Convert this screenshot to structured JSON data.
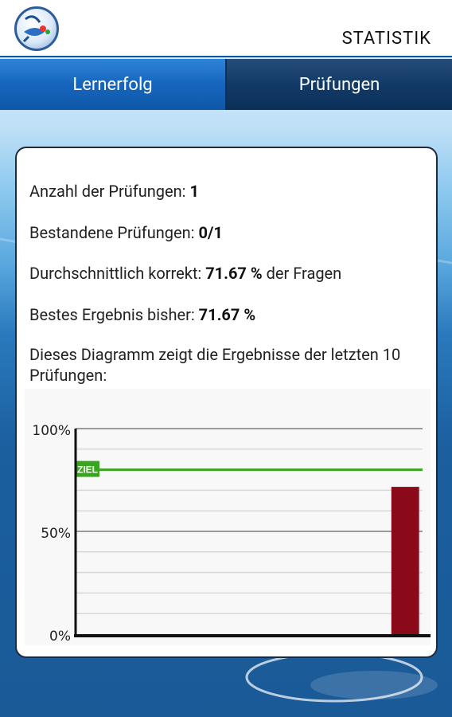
{
  "header": {
    "title": "STATISTIK"
  },
  "tabs": [
    {
      "label": "Lernerfolg",
      "active": true
    },
    {
      "label": "Prüfungen",
      "active": false
    }
  ],
  "stats": {
    "exams_label": "Anzahl der Prüfungen: ",
    "exams_value": "1",
    "passed_label": "Bestandene Prüfungen: ",
    "passed_value": "0/1",
    "avg_label": "Durchschnittlich korrekt: ",
    "avg_value": "71.67 %",
    "avg_suffix": " der Fragen",
    "best_label": "Bestes Ergebnis bisher: ",
    "best_value": "71.67 %"
  },
  "chart_caption": "Dieses Diagramm zeigt die Ergebnisse der letzten 10 Prüfungen:",
  "chart_data": {
    "type": "bar",
    "title": "",
    "ylim": [
      0,
      100
    ],
    "y_ticks": [
      "0%",
      "50%",
      "100%"
    ],
    "y_tick_values": [
      0,
      50,
      100
    ],
    "goal": {
      "label": "ZIEL",
      "value": 80,
      "color": "#3aa51e"
    },
    "slots": 10,
    "values": [
      null,
      null,
      null,
      null,
      null,
      null,
      null,
      null,
      null,
      71.67
    ],
    "bar_color": "#8b0a1a",
    "grid": true
  }
}
